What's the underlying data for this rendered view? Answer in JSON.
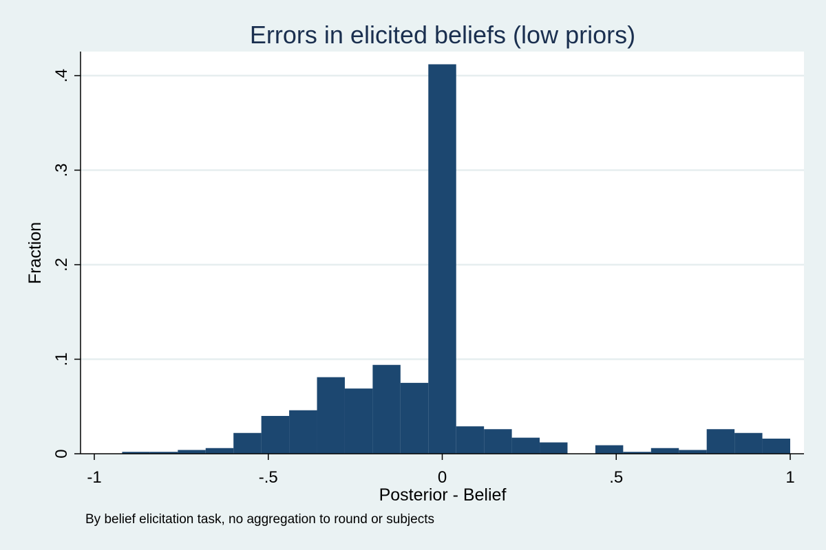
{
  "chart_data": {
    "type": "bar",
    "title": "Errors in elicited beliefs (low priors)",
    "xlabel": "Posterior - Belief",
    "ylabel": "Fraction",
    "note": "By belief elicitation task, no aggregation to round or subjects",
    "xlim": [
      -1,
      1
    ],
    "ylim": [
      0,
      0.4
    ],
    "grid": true,
    "bar_color": "#1c4770",
    "background_color": "#eaf2f3",
    "plot_background_color": "#ffffff",
    "bin_width": 0.08,
    "x_ticks": [
      {
        "value": -1,
        "label": "-1"
      },
      {
        "value": -0.5,
        "label": "-.5"
      },
      {
        "value": 0,
        "label": "0"
      },
      {
        "value": 0.5,
        "label": ".5"
      },
      {
        "value": 1,
        "label": "1"
      }
    ],
    "y_ticks": [
      {
        "value": 0,
        "label": "0"
      },
      {
        "value": 0.1,
        "label": ".1"
      },
      {
        "value": 0.2,
        "label": ".2"
      },
      {
        "value": 0.3,
        "label": ".3"
      },
      {
        "value": 0.4,
        "label": ".4"
      }
    ],
    "bins": [
      {
        "start": -0.92,
        "end": -0.84,
        "value": 0.002
      },
      {
        "start": -0.84,
        "end": -0.76,
        "value": 0.002
      },
      {
        "start": -0.76,
        "end": -0.68,
        "value": 0.004
      },
      {
        "start": -0.68,
        "end": -0.6,
        "value": 0.006
      },
      {
        "start": -0.6,
        "end": -0.52,
        "value": 0.022
      },
      {
        "start": -0.52,
        "end": -0.44,
        "value": 0.04
      },
      {
        "start": -0.44,
        "end": -0.36,
        "value": 0.046
      },
      {
        "start": -0.36,
        "end": -0.28,
        "value": 0.081
      },
      {
        "start": -0.28,
        "end": -0.2,
        "value": 0.069
      },
      {
        "start": -0.2,
        "end": -0.12,
        "value": 0.094
      },
      {
        "start": -0.12,
        "end": -0.04,
        "value": 0.075
      },
      {
        "start": -0.04,
        "end": 0.04,
        "value": 0.412
      },
      {
        "start": 0.04,
        "end": 0.12,
        "value": 0.029
      },
      {
        "start": 0.12,
        "end": 0.2,
        "value": 0.026
      },
      {
        "start": 0.2,
        "end": 0.28,
        "value": 0.017
      },
      {
        "start": 0.28,
        "end": 0.36,
        "value": 0.012
      },
      {
        "start": 0.36,
        "end": 0.44,
        "value": 0.0
      },
      {
        "start": 0.44,
        "end": 0.52,
        "value": 0.009
      },
      {
        "start": 0.52,
        "end": 0.6,
        "value": 0.002
      },
      {
        "start": 0.6,
        "end": 0.68,
        "value": 0.006
      },
      {
        "start": 0.68,
        "end": 0.76,
        "value": 0.004
      },
      {
        "start": 0.76,
        "end": 0.84,
        "value": 0.026
      },
      {
        "start": 0.84,
        "end": 0.92,
        "value": 0.022
      },
      {
        "start": 0.92,
        "end": 1.0,
        "value": 0.016
      }
    ]
  }
}
